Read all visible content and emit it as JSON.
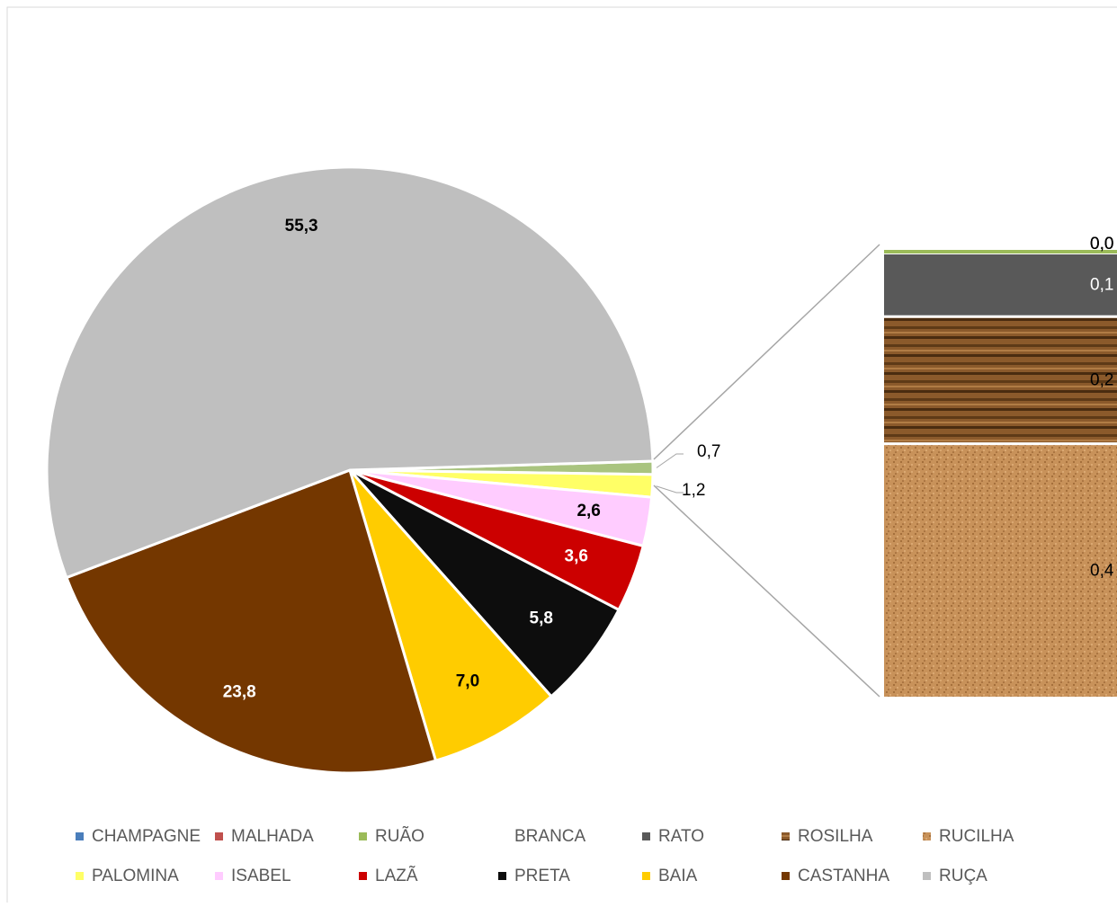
{
  "chart_data": {
    "type": "pie-of-bar",
    "pie": {
      "categories": [
        null,
        "PALOMINA",
        "ISABEL",
        "LAZÃ",
        "PRETA",
        "BAIA",
        "CASTANHA",
        "RUÇA"
      ],
      "values": [
        0.7,
        1.2,
        2.6,
        3.6,
        5.8,
        7.0,
        23.8,
        55.3
      ],
      "value_labels": [
        "0,7",
        "1,2",
        "2,6",
        "3,6",
        "5,8",
        "7,0",
        "23,8",
        "55,3"
      ],
      "colors": [
        "#a9c47f",
        "#ffff66",
        "#ffccff",
        "#cc0000",
        "#0d0d0d",
        "#ffcc00",
        "#743700",
        "#bfbfbf"
      ],
      "label_colors": [
        "#000000",
        "#000000",
        "#000000",
        "#ffffff",
        "#ffffff",
        "#000000",
        "#ffffff",
        "#000000"
      ]
    },
    "bar": {
      "categories": [
        "CHAMPAGNE",
        "MALHADA",
        "RUÃO",
        "BRANCA",
        "RATO",
        "ROSILHA",
        "RUCILHA"
      ],
      "values": [
        0.0,
        0.0,
        0.0,
        0.0,
        0.1,
        0.2,
        0.4
      ],
      "value_labels": [
        "0,0",
        "0,0",
        "0,0",
        "0,0",
        "0,1",
        "0,2",
        "0,4"
      ],
      "colors": [
        "#4a7ebb",
        "#c0504d",
        "#9bbb59",
        "#ffffff",
        "#595959",
        "#8b5a2b",
        "#c8925a"
      ]
    }
  }
}
